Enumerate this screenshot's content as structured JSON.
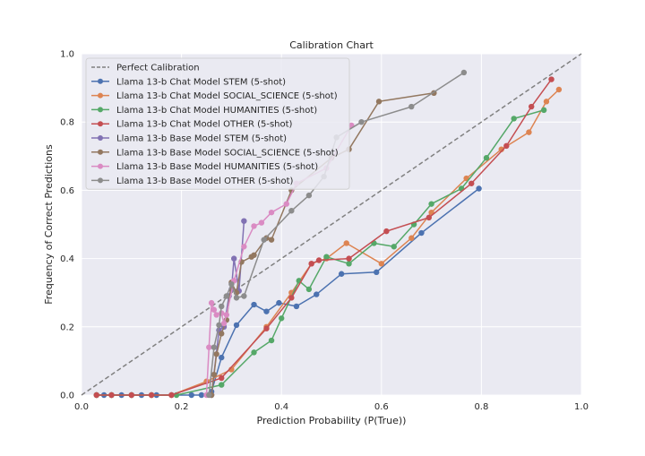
{
  "chart_data": {
    "type": "line",
    "title": "Calibration Chart",
    "xlabel": "Prediction Probability (P(True))",
    "ylabel": "Frequency of Correct Predictions",
    "xlim": [
      0.0,
      1.0
    ],
    "ylim": [
      0.0,
      1.0
    ],
    "xticks": [
      "0.0",
      "0.2",
      "0.4",
      "0.6",
      "0.8",
      "1.0"
    ],
    "yticks": [
      "0.0",
      "0.2",
      "0.4",
      "0.6",
      "0.8",
      "1.0"
    ],
    "grid": true,
    "legend_position": "upper-left",
    "reference_line": {
      "name": "Perfect Calibration",
      "color": "#808080",
      "style": "dashed",
      "x": [
        0,
        1
      ],
      "y": [
        0,
        1
      ]
    },
    "series": [
      {
        "name": "Llama 13-b Chat Model STEM (5-shot)",
        "color": "#4c72b0",
        "x": [
          0.03,
          0.045,
          0.06,
          0.08,
          0.1,
          0.12,
          0.15,
          0.18,
          0.22,
          0.24,
          0.26,
          0.28,
          0.31,
          0.345,
          0.37,
          0.395,
          0.43,
          0.47,
          0.52,
          0.59,
          0.68,
          0.795
        ],
        "y": [
          0.0,
          0.0,
          0.0,
          0.0,
          0.0,
          0.0,
          0.0,
          0.0,
          0.0,
          0.0,
          0.01,
          0.11,
          0.205,
          0.265,
          0.245,
          0.27,
          0.26,
          0.295,
          0.355,
          0.36,
          0.475,
          0.605
        ]
      },
      {
        "name": "Llama 13-b Chat Model SOCIAL_SCIENCE (5-shot)",
        "color": "#dd8452",
        "x": [
          0.03,
          0.06,
          0.1,
          0.14,
          0.18,
          0.25,
          0.3,
          0.37,
          0.42,
          0.46,
          0.49,
          0.53,
          0.6,
          0.66,
          0.7,
          0.77,
          0.84,
          0.895,
          0.93,
          0.955
        ],
        "y": [
          0.0,
          0.0,
          0.0,
          0.0,
          0.0,
          0.04,
          0.075,
          0.2,
          0.3,
          0.385,
          0.4,
          0.445,
          0.385,
          0.46,
          0.535,
          0.635,
          0.72,
          0.77,
          0.86,
          0.895
        ]
      },
      {
        "name": "Llama 13-b Chat Model HUMANITIES (5-shot)",
        "color": "#55a868",
        "x": [
          0.03,
          0.06,
          0.1,
          0.14,
          0.19,
          0.28,
          0.345,
          0.38,
          0.4,
          0.435,
          0.455,
          0.49,
          0.535,
          0.585,
          0.625,
          0.665,
          0.7,
          0.76,
          0.81,
          0.865,
          0.925
        ],
        "y": [
          0.0,
          0.0,
          0.0,
          0.0,
          0.0,
          0.03,
          0.125,
          0.16,
          0.225,
          0.335,
          0.31,
          0.405,
          0.385,
          0.445,
          0.435,
          0.5,
          0.56,
          0.605,
          0.695,
          0.81,
          0.835
        ]
      },
      {
        "name": "Llama 13-b Chat Model OTHER (5-shot)",
        "color": "#c44e52",
        "x": [
          0.03,
          0.06,
          0.1,
          0.14,
          0.18,
          0.28,
          0.37,
          0.42,
          0.46,
          0.475,
          0.535,
          0.61,
          0.695,
          0.78,
          0.85,
          0.9,
          0.94
        ],
        "y": [
          0.0,
          0.0,
          0.0,
          0.0,
          0.0,
          0.05,
          0.195,
          0.285,
          0.385,
          0.395,
          0.4,
          0.48,
          0.52,
          0.62,
          0.73,
          0.845,
          0.925
        ]
      },
      {
        "name": "Llama 13-b Base Model STEM (5-shot)",
        "color": "#8172b3",
        "x": [
          0.26,
          0.275,
          0.285,
          0.295,
          0.3,
          0.305,
          0.315,
          0.325
        ],
        "y": [
          0.0,
          0.19,
          0.2,
          0.29,
          0.31,
          0.4,
          0.305,
          0.51
        ]
      },
      {
        "name": "Llama 13-b Base Model SOCIAL_SCIENCE (5-shot)",
        "color": "#937860",
        "x": [
          0.26,
          0.265,
          0.27,
          0.28,
          0.29,
          0.3,
          0.31,
          0.32,
          0.34,
          0.345,
          0.37,
          0.38,
          0.42,
          0.5,
          0.535,
          0.595,
          0.705
        ],
        "y": [
          0.0,
          0.06,
          0.12,
          0.18,
          0.22,
          0.33,
          0.3,
          0.39,
          0.405,
          0.41,
          0.46,
          0.455,
          0.6,
          0.695,
          0.72,
          0.86,
          0.885
        ]
      },
      {
        "name": "Llama 13-b Base Model HUMANITIES (5-shot)",
        "color": "#da8bc3",
        "x": [
          0.25,
          0.255,
          0.26,
          0.265,
          0.27,
          0.28,
          0.285,
          0.29,
          0.305,
          0.325,
          0.345,
          0.36,
          0.38,
          0.41,
          0.43,
          0.49,
          0.54
        ],
        "y": [
          0.0,
          0.14,
          0.27,
          0.25,
          0.235,
          0.24,
          0.21,
          0.235,
          0.335,
          0.435,
          0.495,
          0.505,
          0.535,
          0.56,
          0.62,
          0.665,
          0.79
        ]
      },
      {
        "name": "Llama 13-b Base Model OTHER (5-shot)",
        "color": "#8c8c8c",
        "x": [
          0.255,
          0.265,
          0.275,
          0.28,
          0.29,
          0.3,
          0.31,
          0.325,
          0.365,
          0.42,
          0.455,
          0.485,
          0.51,
          0.56,
          0.66,
          0.765
        ],
        "y": [
          0.0,
          0.14,
          0.205,
          0.26,
          0.29,
          0.325,
          0.285,
          0.29,
          0.455,
          0.54,
          0.585,
          0.64,
          0.755,
          0.8,
          0.845,
          0.945
        ]
      }
    ]
  }
}
